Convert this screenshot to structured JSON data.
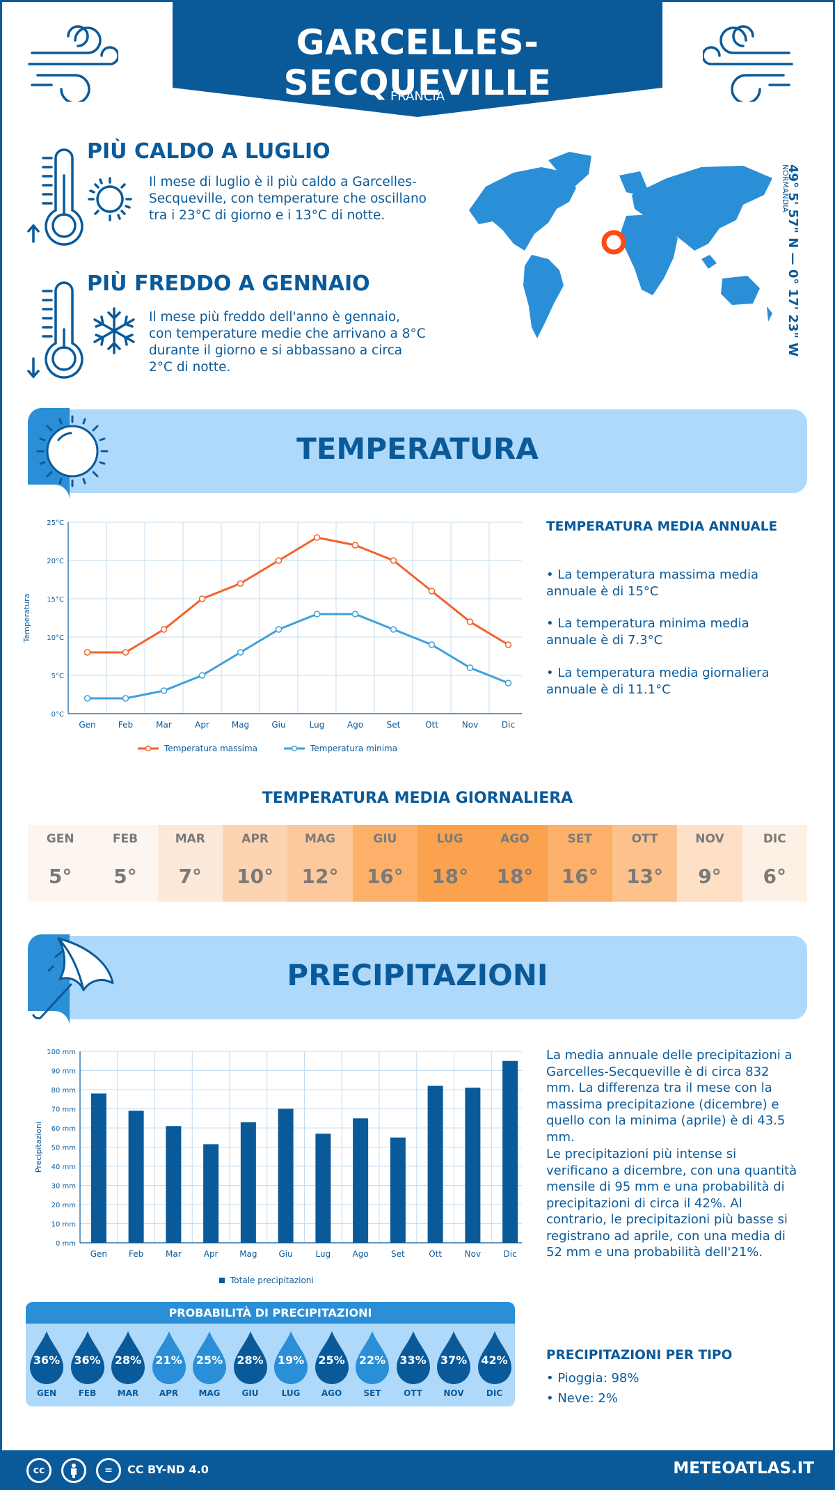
{
  "header": {
    "title": "GARCELLES-SECQUEVILLE",
    "country": "FRANCIA"
  },
  "location": {
    "coords": "49° 5' 57\" N — 0° 17' 23\" W",
    "region": "NORMANDIA"
  },
  "facts": {
    "hot": {
      "title": "PIÙ CALDO A LUGLIO",
      "text": "Il mese di luglio è il più caldo a Garcelles-Secqueville, con temperature che oscillano tra i 23°C di giorno e i 13°C di notte."
    },
    "cold": {
      "title": "PIÙ FREDDO A GENNAIO",
      "text": "Il mese più freddo dell'anno è gennaio, con temperature medie che arrivano a 8°C durante il giorno e si abbassano a circa 2°C di notte."
    }
  },
  "temperature": {
    "banner": "TEMPERATURA",
    "side_title": "TEMPERATURA MEDIA ANNUALE",
    "bullets": [
      "• La temperatura massima media annuale è di 15°C",
      "• La temperatura minima media annuale è di 7.3°C",
      "• La temperatura media giornaliera annuale è di 11.1°C"
    ],
    "daily_title": "TEMPERATURA MEDIA GIORNALIERA",
    "daily": [
      {
        "m": "GEN",
        "v": "5°",
        "bg": "#fdf6f0"
      },
      {
        "m": "FEB",
        "v": "5°",
        "bg": "#fdf6f0"
      },
      {
        "m": "MAR",
        "v": "7°",
        "bg": "#fde9da"
      },
      {
        "m": "APR",
        "v": "10°",
        "bg": "#fdd4b2"
      },
      {
        "m": "MAG",
        "v": "12°",
        "bg": "#fdc89b"
      },
      {
        "m": "GIU",
        "v": "16°",
        "bg": "#fcb06a"
      },
      {
        "m": "LUG",
        "v": "18°",
        "bg": "#fba24f"
      },
      {
        "m": "AGO",
        "v": "18°",
        "bg": "#fba24f"
      },
      {
        "m": "SET",
        "v": "16°",
        "bg": "#fcb06a"
      },
      {
        "m": "OTT",
        "v": "13°",
        "bg": "#fdc18c"
      },
      {
        "m": "NOV",
        "v": "9°",
        "bg": "#fde0c6"
      },
      {
        "m": "DIC",
        "v": "6°",
        "bg": "#fdf1e6"
      }
    ]
  },
  "precipitation": {
    "banner": "PRECIPITAZIONI",
    "text1": "La media annuale delle precipitazioni a Garcelles-Secqueville è di circa 832 mm. La differenza tra il mese con la massima precipitazione (dicembre) e quello con la minima (aprile) è di 43.5 mm.",
    "text2": "Le precipitazioni più intense si verificano a dicembre, con una quantità mensile di 95 mm e una probabilità di precipitazioni di circa il 42%. Al contrario, le precipitazioni più basse si registrano ad aprile, con una media di 52 mm e una probabilità dell'21%.",
    "prob_title": "PROBABILITÀ DI PRECIPITAZIONI",
    "prob": [
      {
        "m": "GEN",
        "v": "36%",
        "c": "#0a5a9a"
      },
      {
        "m": "FEB",
        "v": "36%",
        "c": "#0a5a9a"
      },
      {
        "m": "MAR",
        "v": "28%",
        "c": "#0a5a9a"
      },
      {
        "m": "APR",
        "v": "21%",
        "c": "#2a8fd6"
      },
      {
        "m": "MAG",
        "v": "25%",
        "c": "#2a8fd6"
      },
      {
        "m": "GIU",
        "v": "28%",
        "c": "#0a5a9a"
      },
      {
        "m": "LUG",
        "v": "19%",
        "c": "#2a8fd6"
      },
      {
        "m": "AGO",
        "v": "25%",
        "c": "#0a5a9a"
      },
      {
        "m": "SET",
        "v": "22%",
        "c": "#2a8fd6"
      },
      {
        "m": "OTT",
        "v": "33%",
        "c": "#0a5a9a"
      },
      {
        "m": "NOV",
        "v": "37%",
        "c": "#0a5a9a"
      },
      {
        "m": "DIC",
        "v": "42%",
        "c": "#0a5a9a"
      }
    ],
    "type_title": "PRECIPITAZIONI PER TIPO",
    "types": [
      "• Pioggia: 98%",
      "• Neve: 2%"
    ]
  },
  "footer": {
    "license": "CC BY-ND 4.0",
    "site": "METEOATLAS.IT"
  },
  "chart_data": [
    {
      "type": "line",
      "categories": [
        "Gen",
        "Feb",
        "Mar",
        "Apr",
        "Mag",
        "Giu",
        "Lug",
        "Ago",
        "Set",
        "Ott",
        "Nov",
        "Dic"
      ],
      "series": [
        {
          "name": "Temperatura massima",
          "values": [
            8,
            8,
            11,
            15,
            17,
            20,
            23,
            22,
            20,
            16,
            12,
            9
          ],
          "color": "#f4612a"
        },
        {
          "name": "Temperatura minima",
          "values": [
            2,
            2,
            3,
            5,
            8,
            11,
            13,
            13,
            11,
            9,
            6,
            4
          ],
          "color": "#3fa0dc"
        }
      ],
      "ylabel": "Temperatura",
      "yticks": [
        "0°C",
        "5°C",
        "10°C",
        "15°C",
        "20°C",
        "25°C"
      ],
      "ylim": [
        0,
        25
      ],
      "grid": true,
      "legend": "bottom"
    },
    {
      "type": "bar",
      "categories": [
        "Gen",
        "Feb",
        "Mar",
        "Apr",
        "Mag",
        "Giu",
        "Lug",
        "Ago",
        "Set",
        "Ott",
        "Nov",
        "Dic"
      ],
      "series": [
        {
          "name": "Totale precipitazioni",
          "values": [
            78,
            69,
            61,
            51.5,
            63,
            70,
            57,
            65,
            55,
            82,
            81,
            95
          ],
          "color": "#0a5a9a"
        }
      ],
      "ylabel": "Precipitazioni",
      "yticks": [
        "0 mm",
        "10 mm",
        "20 mm",
        "30 mm",
        "40 mm",
        "50 mm",
        "60 mm",
        "70 mm",
        "80 mm",
        "90 mm",
        "100 mm"
      ],
      "ylim": [
        0,
        100
      ],
      "grid": true,
      "legend": "bottom"
    }
  ]
}
